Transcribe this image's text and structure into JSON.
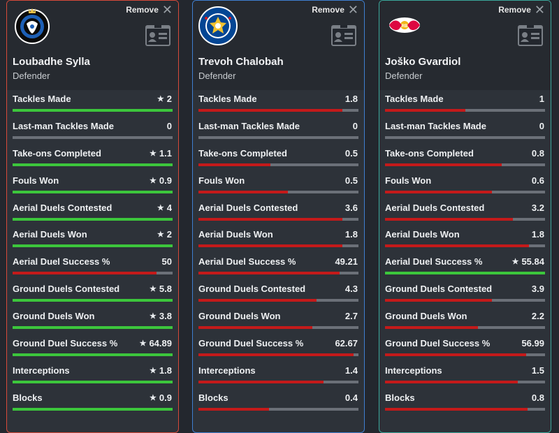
{
  "ui": {
    "remove_label": "Remove",
    "star_glyph": "★",
    "colors": {
      "winner": "#3cc63c",
      "other": "#c41a1a",
      "track": "#6b7078"
    }
  },
  "players": [
    {
      "name": "Loubadhe Sylla",
      "position": "Defender",
      "club_logo": "club-brugge-crest-icon",
      "border_color": "#d64a3a",
      "stats": [
        {
          "label": "Tackles Made",
          "value": "2",
          "star": true,
          "fill": 1.0
        },
        {
          "label": "Last-man Tackles Made",
          "value": "0",
          "star": false,
          "fill": 0.0
        },
        {
          "label": "Take-ons Completed",
          "value": "1.1",
          "star": true,
          "fill": 1.0
        },
        {
          "label": "Fouls Won",
          "value": "0.9",
          "star": true,
          "fill": 1.0
        },
        {
          "label": "Aerial Duels Contested",
          "value": "4",
          "star": true,
          "fill": 1.0
        },
        {
          "label": "Aerial Duels Won",
          "value": "2",
          "star": true,
          "fill": 1.0
        },
        {
          "label": "Aerial Duel Success %",
          "value": "50",
          "star": false,
          "fill": 0.9
        },
        {
          "label": "Ground Duels Contested",
          "value": "5.8",
          "star": true,
          "fill": 1.0
        },
        {
          "label": "Ground Duels Won",
          "value": "3.8",
          "star": true,
          "fill": 1.0
        },
        {
          "label": "Ground Duel Success %",
          "value": "64.89",
          "star": true,
          "fill": 1.0
        },
        {
          "label": "Interceptions",
          "value": "1.8",
          "star": true,
          "fill": 1.0
        },
        {
          "label": "Blocks",
          "value": "0.9",
          "star": true,
          "fill": 1.0
        }
      ]
    },
    {
      "name": "Trevoh Chalobah",
      "position": "Defender",
      "club_logo": "chelsea-crest-icon",
      "border_color": "#3f7fd0",
      "stats": [
        {
          "label": "Tackles Made",
          "value": "1.8",
          "star": false,
          "fill": 0.9
        },
        {
          "label": "Last-man Tackles Made",
          "value": "0",
          "star": false,
          "fill": 0.0
        },
        {
          "label": "Take-ons Completed",
          "value": "0.5",
          "star": false,
          "fill": 0.45
        },
        {
          "label": "Fouls Won",
          "value": "0.5",
          "star": false,
          "fill": 0.56
        },
        {
          "label": "Aerial Duels Contested",
          "value": "3.6",
          "star": false,
          "fill": 0.9
        },
        {
          "label": "Aerial Duels Won",
          "value": "1.8",
          "star": false,
          "fill": 0.9
        },
        {
          "label": "Aerial Duel Success %",
          "value": "49.21",
          "star": false,
          "fill": 0.88
        },
        {
          "label": "Ground Duels Contested",
          "value": "4.3",
          "star": false,
          "fill": 0.74
        },
        {
          "label": "Ground Duels Won",
          "value": "2.7",
          "star": false,
          "fill": 0.71
        },
        {
          "label": "Ground Duel Success %",
          "value": "62.67",
          "star": false,
          "fill": 0.97
        },
        {
          "label": "Interceptions",
          "value": "1.4",
          "star": false,
          "fill": 0.78
        },
        {
          "label": "Blocks",
          "value": "0.4",
          "star": false,
          "fill": 0.44
        }
      ]
    },
    {
      "name": "Joško Gvardiol",
      "position": "Defender",
      "club_logo": "rb-leipzig-crest-icon",
      "border_color": "#3aa69a",
      "stats": [
        {
          "label": "Tackles Made",
          "value": "1",
          "star": false,
          "fill": 0.5
        },
        {
          "label": "Last-man Tackles Made",
          "value": "0",
          "star": false,
          "fill": 0.0
        },
        {
          "label": "Take-ons Completed",
          "value": "0.8",
          "star": false,
          "fill": 0.73
        },
        {
          "label": "Fouls Won",
          "value": "0.6",
          "star": false,
          "fill": 0.67
        },
        {
          "label": "Aerial Duels Contested",
          "value": "3.2",
          "star": false,
          "fill": 0.8
        },
        {
          "label": "Aerial Duels Won",
          "value": "1.8",
          "star": false,
          "fill": 0.9
        },
        {
          "label": "Aerial Duel Success %",
          "value": "55.84",
          "star": true,
          "fill": 1.0
        },
        {
          "label": "Ground Duels Contested",
          "value": "3.9",
          "star": false,
          "fill": 0.67
        },
        {
          "label": "Ground Duels Won",
          "value": "2.2",
          "star": false,
          "fill": 0.58
        },
        {
          "label": "Ground Duel Success %",
          "value": "56.99",
          "star": false,
          "fill": 0.88
        },
        {
          "label": "Interceptions",
          "value": "1.5",
          "star": false,
          "fill": 0.83
        },
        {
          "label": "Blocks",
          "value": "0.8",
          "star": false,
          "fill": 0.89
        }
      ]
    }
  ]
}
